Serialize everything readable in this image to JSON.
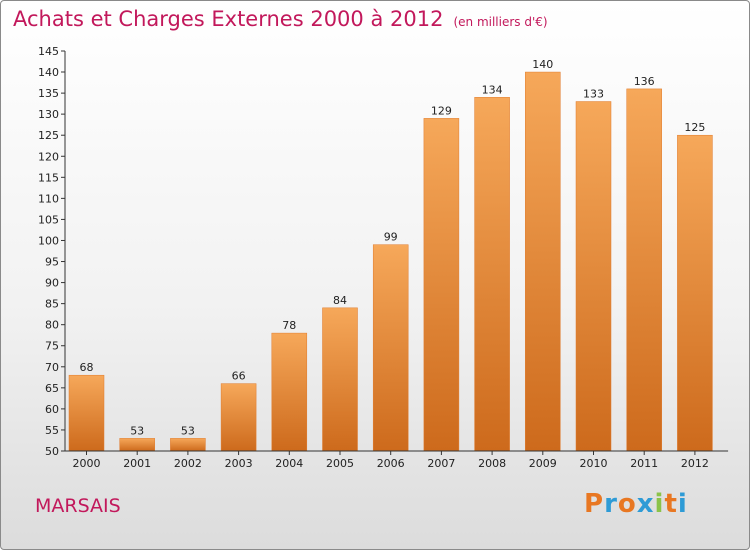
{
  "header": {
    "title": "Achats et Charges Externes 2000 à 2012",
    "subtitle": "(en milliers d'€)"
  },
  "footer": {
    "commune": "MARSAIS",
    "logo": {
      "text": "Proxiti",
      "colors": [
        "#e87722",
        "#2e9bd6",
        "#e87722",
        "#2e9bd6",
        "#8bc34a",
        "#e87722",
        "#2e9bd6"
      ]
    }
  },
  "colors": {
    "title": "#c2185b",
    "bar_top": "#f6a85a",
    "bar_bottom": "#cd6a1c",
    "axis": "#333333",
    "grid": "#d0d0d0"
  },
  "chart_data": {
    "type": "bar",
    "categories": [
      "2000",
      "2001",
      "2002",
      "2003",
      "2004",
      "2005",
      "2006",
      "2007",
      "2008",
      "2009",
      "2010",
      "2011",
      "2012"
    ],
    "values": [
      68,
      53,
      53,
      66,
      78,
      84,
      99,
      129,
      134,
      140,
      133,
      136,
      125
    ],
    "ylim": [
      50,
      145
    ],
    "ytick_step": 5,
    "grid": false
  }
}
